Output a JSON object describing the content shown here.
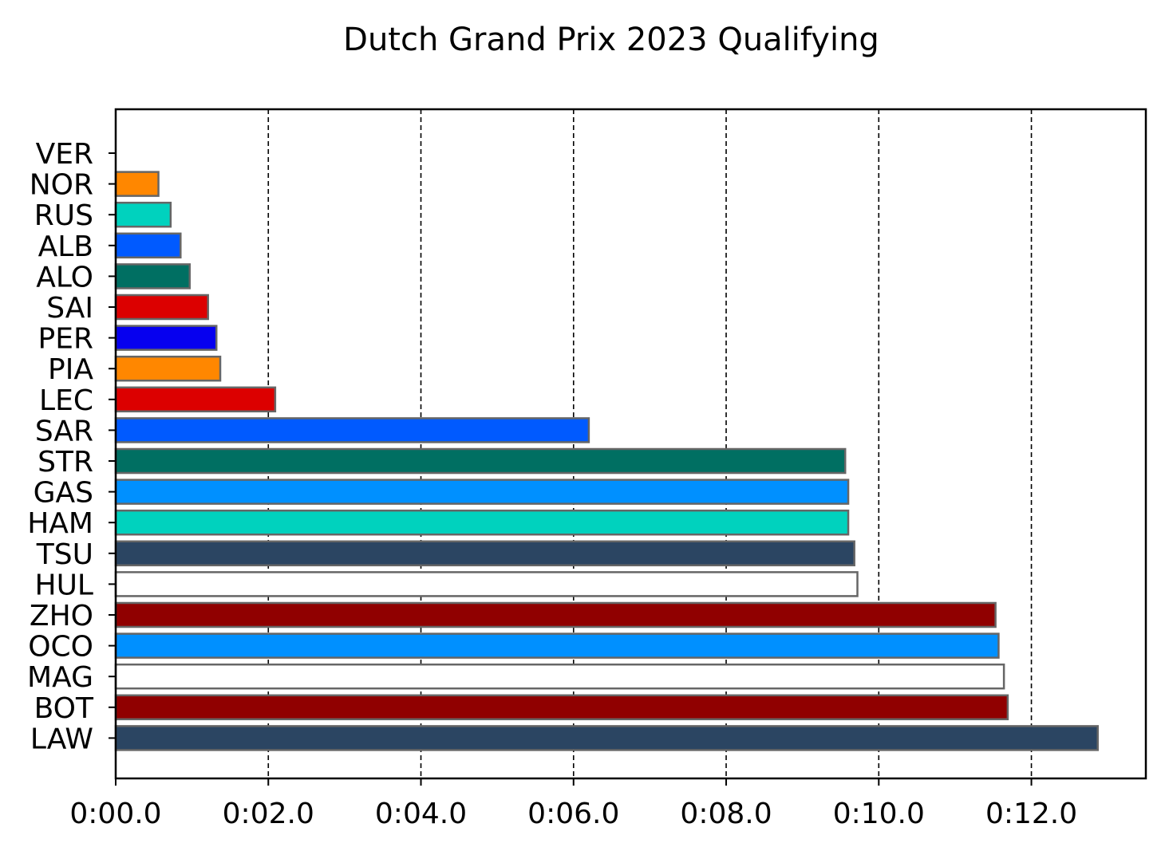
{
  "chart_data": {
    "type": "bar",
    "orientation": "horizontal",
    "title": "Dutch Grand Prix 2023 Qualifying",
    "xlabel": "",
    "ylabel": "",
    "xlim": [
      0,
      13.5
    ],
    "grid": "x-dashed",
    "x_ticks": [
      {
        "value": 0,
        "label": "0:00.0"
      },
      {
        "value": 2,
        "label": "0:02.0"
      },
      {
        "value": 4,
        "label": "0:04.0"
      },
      {
        "value": 6,
        "label": "0:06.0"
      },
      {
        "value": 8,
        "label": "0:08.0"
      },
      {
        "value": 10,
        "label": "0:10.0"
      },
      {
        "value": 12,
        "label": "0:12.0"
      }
    ],
    "unit": "seconds",
    "bars": [
      {
        "driver": "VER",
        "gap": 0.0,
        "color": "#3671C6"
      },
      {
        "driver": "NOR",
        "gap": 0.56,
        "color": "#FF8700"
      },
      {
        "driver": "RUS",
        "gap": 0.72,
        "color": "#00D2BE"
      },
      {
        "driver": "ALB",
        "gap": 0.85,
        "color": "#005AFF"
      },
      {
        "driver": "ALO",
        "gap": 0.97,
        "color": "#006F62"
      },
      {
        "driver": "SAI",
        "gap": 1.21,
        "color": "#DC0000"
      },
      {
        "driver": "PER",
        "gap": 1.32,
        "color": "#0600EF"
      },
      {
        "driver": "PIA",
        "gap": 1.37,
        "color": "#FF8700"
      },
      {
        "driver": "LEC",
        "gap": 2.09,
        "color": "#DC0000"
      },
      {
        "driver": "SAR",
        "gap": 6.2,
        "color": "#005AFF"
      },
      {
        "driver": "STR",
        "gap": 9.56,
        "color": "#006F62"
      },
      {
        "driver": "GAS",
        "gap": 9.6,
        "color": "#0090FF"
      },
      {
        "driver": "HAM",
        "gap": 9.6,
        "color": "#00D2BE"
      },
      {
        "driver": "TSU",
        "gap": 9.68,
        "color": "#2B4562"
      },
      {
        "driver": "HUL",
        "gap": 9.72,
        "color": "#FFFFFF"
      },
      {
        "driver": "ZHO",
        "gap": 11.53,
        "color": "#900000"
      },
      {
        "driver": "OCO",
        "gap": 11.57,
        "color": "#0090FF"
      },
      {
        "driver": "MAG",
        "gap": 11.64,
        "color": "#FFFFFF"
      },
      {
        "driver": "BOT",
        "gap": 11.69,
        "color": "#900000"
      },
      {
        "driver": "LAW",
        "gap": 12.87,
        "color": "#2B4562"
      }
    ]
  }
}
